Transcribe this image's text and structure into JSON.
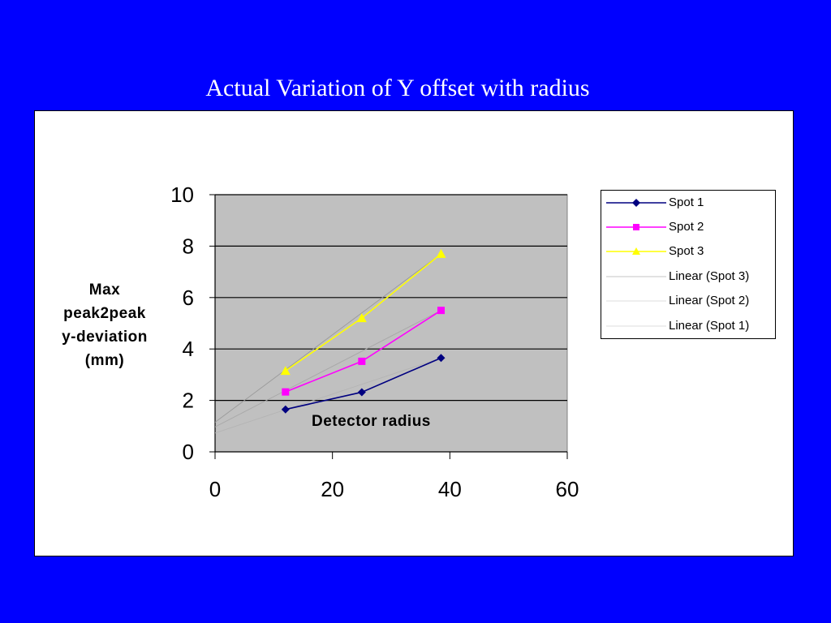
{
  "slide": {
    "title": "Actual Variation of Y offset with radius"
  },
  "colors": {
    "background": "#0000ff",
    "plot_area": "#c0c0c0",
    "spot1": "#000080",
    "spot2": "#ff00ff",
    "spot3": "#ffff00",
    "trendline": "#a6a6a6"
  },
  "chart_data": {
    "type": "line",
    "title": "",
    "ylabel_lines": [
      "Max",
      "peak2peak",
      "y-deviation",
      "(mm)"
    ],
    "xlabel": "Detector radius",
    "xlim": [
      0,
      60
    ],
    "ylim": [
      0,
      10
    ],
    "x_ticks": [
      "0",
      "20",
      "40",
      "60"
    ],
    "y_ticks": [
      "0",
      "2",
      "4",
      "6",
      "8",
      "10"
    ],
    "grid": "horizontal",
    "legend_position": "right",
    "series": [
      {
        "name": "Spot 1",
        "marker": "diamond",
        "color": "#000080",
        "x": [
          12,
          25,
          38.5
        ],
        "y": [
          1.65,
          2.32,
          3.65
        ]
      },
      {
        "name": "Spot 2",
        "marker": "square",
        "color": "#ff00ff",
        "x": [
          12,
          25,
          38.5
        ],
        "y": [
          2.33,
          3.52,
          5.5
        ]
      },
      {
        "name": "Spot 3",
        "marker": "triangle",
        "color": "#ffff00",
        "x": [
          12,
          25,
          38.5
        ],
        "y": [
          3.15,
          5.2,
          7.7
        ]
      }
    ],
    "trendlines": [
      {
        "name": "Linear (Spot 3)",
        "x": [
          0,
          38.5
        ],
        "y": [
          1.15,
          7.7
        ]
      },
      {
        "name": "Linear (Spot 2)",
        "x": [
          0,
          38.5
        ],
        "y": [
          0.97,
          5.5
        ]
      },
      {
        "name": "Linear (Spot 1)",
        "x": [
          0,
          38.5
        ],
        "y": [
          0.73,
          3.65
        ]
      }
    ],
    "legend": [
      "Spot 1",
      "Spot 2",
      "Spot 3",
      "Linear (Spot 3)",
      "Linear (Spot 2)",
      "Linear (Spot 1)"
    ]
  }
}
